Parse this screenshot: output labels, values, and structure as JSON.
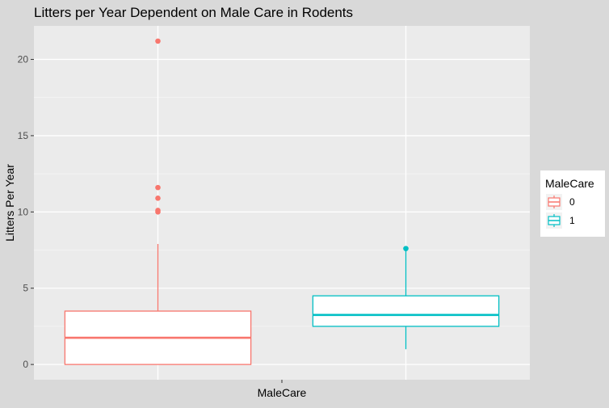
{
  "chart_data": {
    "type": "boxplot",
    "title": "Litters per Year Dependent on Male Care in Rodents",
    "xlabel": "MaleCare",
    "ylabel": "Litters Per Year",
    "ylim": [
      -1,
      22.2
    ],
    "y_ticks": [
      0,
      5,
      10,
      15,
      20
    ],
    "grid": true,
    "legend": {
      "title": "MaleCare",
      "placement": "right",
      "entries": [
        "0",
        "1"
      ]
    },
    "colors": {
      "0": "#F8766D",
      "1": "#00BFC4",
      "panel": "#EBEBEB",
      "background": "#D9D9D9"
    },
    "groups": [
      {
        "name": "0",
        "min": 0,
        "q1": 0,
        "median": 1.75,
        "q3": 3.5,
        "max": 7.9,
        "outliers": [
          10.0,
          10.1,
          10.9,
          11.6,
          21.2
        ]
      },
      {
        "name": "1",
        "min": 1.0,
        "q1": 2.5,
        "median": 3.25,
        "q3": 4.5,
        "max": 7.5,
        "outliers": [
          7.6
        ]
      }
    ]
  }
}
